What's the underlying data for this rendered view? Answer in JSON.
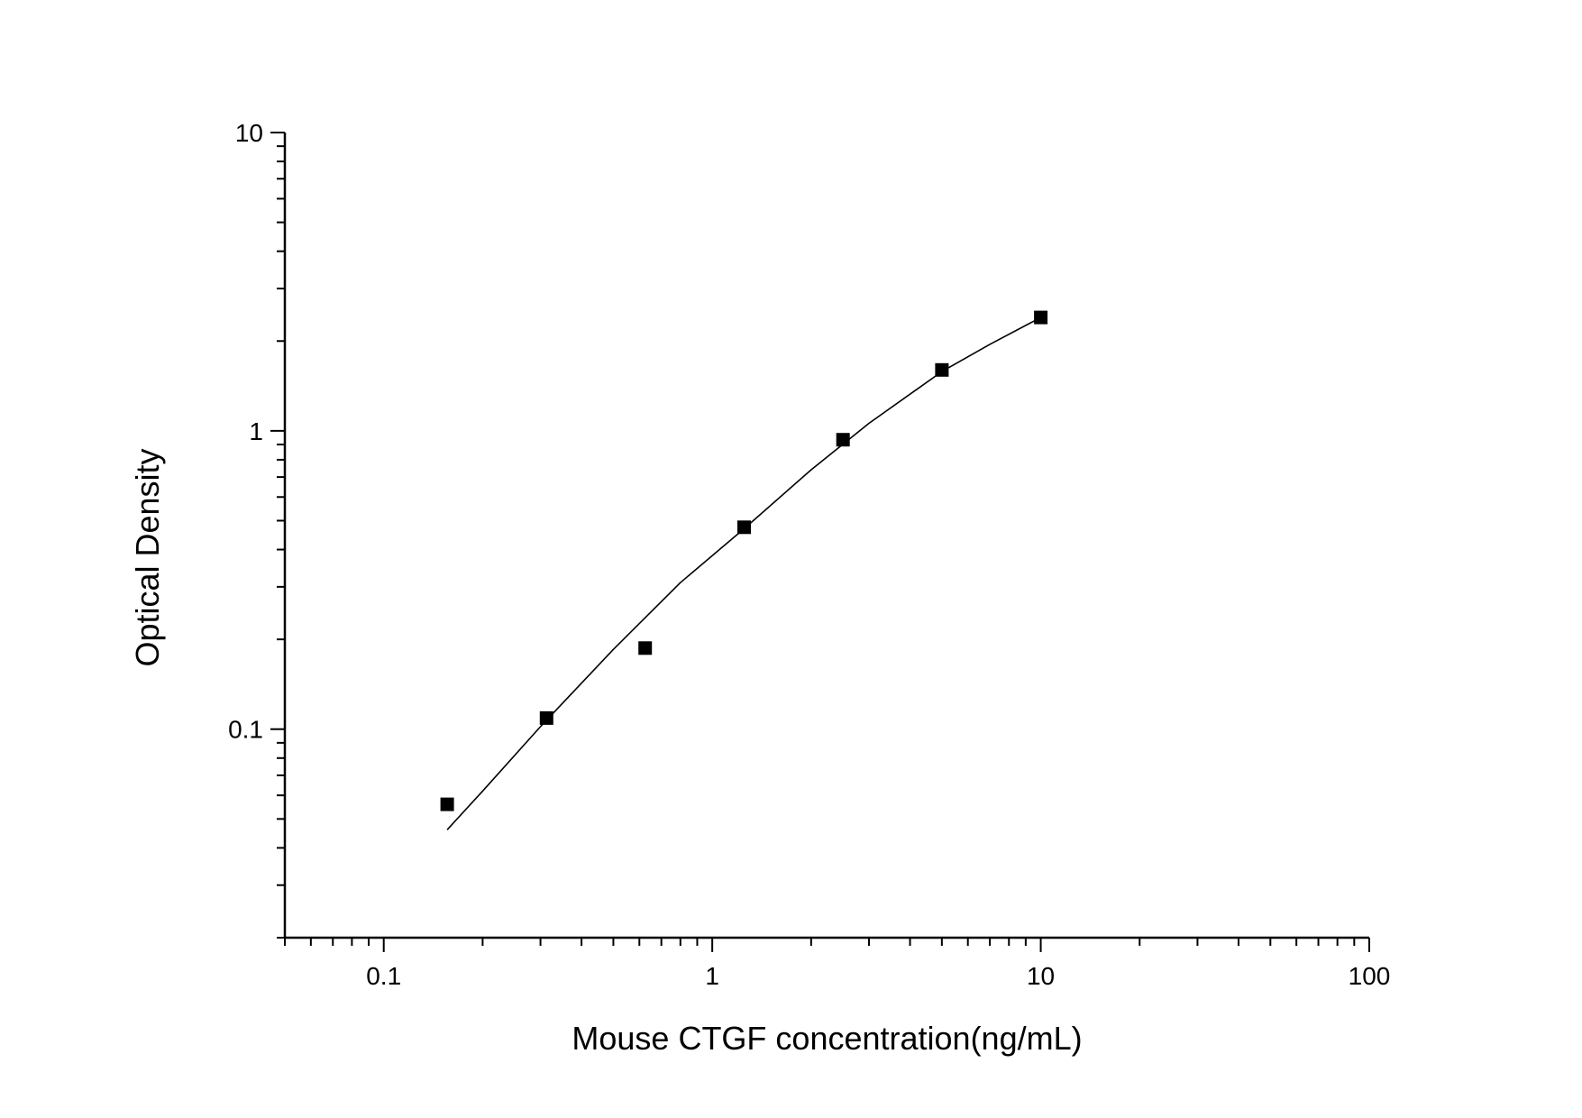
{
  "chart_data": {
    "type": "scatter",
    "title": "",
    "xlabel": "Mouse CTGF concentration(ng/mL)",
    "ylabel": "Optical Density",
    "x_scale": "log",
    "y_scale": "log",
    "xlim": [
      0.05,
      100
    ],
    "ylim": [
      0.02,
      10
    ],
    "x_ticks": [
      {
        "value": 0.1,
        "label": "0.1"
      },
      {
        "value": 1,
        "label": "1"
      },
      {
        "value": 10,
        "label": "10"
      },
      {
        "value": 100,
        "label": "100"
      }
    ],
    "y_ticks": [
      {
        "value": 0.1,
        "label": "0.1"
      },
      {
        "value": 1,
        "label": "1"
      },
      {
        "value": 10,
        "label": "10"
      }
    ],
    "grid": false,
    "series": [
      {
        "x": [
          0.156,
          0.313,
          0.625,
          1.25,
          2.5,
          5,
          10
        ],
        "y": [
          0.056,
          0.109,
          0.187,
          0.475,
          0.934,
          1.6,
          2.4
        ],
        "color": "#000000",
        "marker": "square"
      }
    ],
    "fit_curve": {
      "x": [
        0.156,
        0.2,
        0.3,
        0.5,
        0.8,
        1.25,
        2,
        3,
        5,
        7,
        10
      ],
      "y": [
        0.046,
        0.062,
        0.102,
        0.185,
        0.31,
        0.47,
        0.74,
        1.06,
        1.58,
        1.95,
        2.4
      ],
      "color": "#000000"
    }
  }
}
